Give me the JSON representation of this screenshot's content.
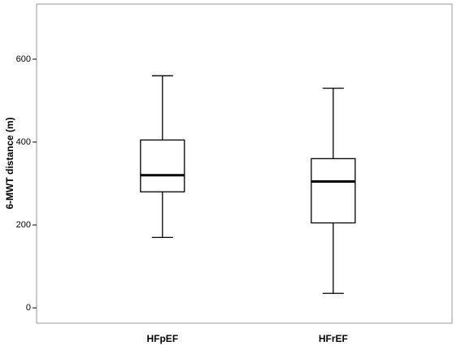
{
  "chart_data": {
    "type": "box",
    "y_label": "6-MWT distance (m)",
    "categories": [
      "HFpEF",
      "HFrEF"
    ],
    "boxes": [
      {
        "min": 170,
        "q1": 280,
        "median": 320,
        "q3": 405,
        "max": 560
      },
      {
        "min": 35,
        "q1": 205,
        "median": 305,
        "q3": 360,
        "max": 530
      }
    ],
    "ylim": [
      -37,
      733
    ],
    "yticks": [
      0,
      200,
      400,
      600
    ],
    "grid": false
  }
}
